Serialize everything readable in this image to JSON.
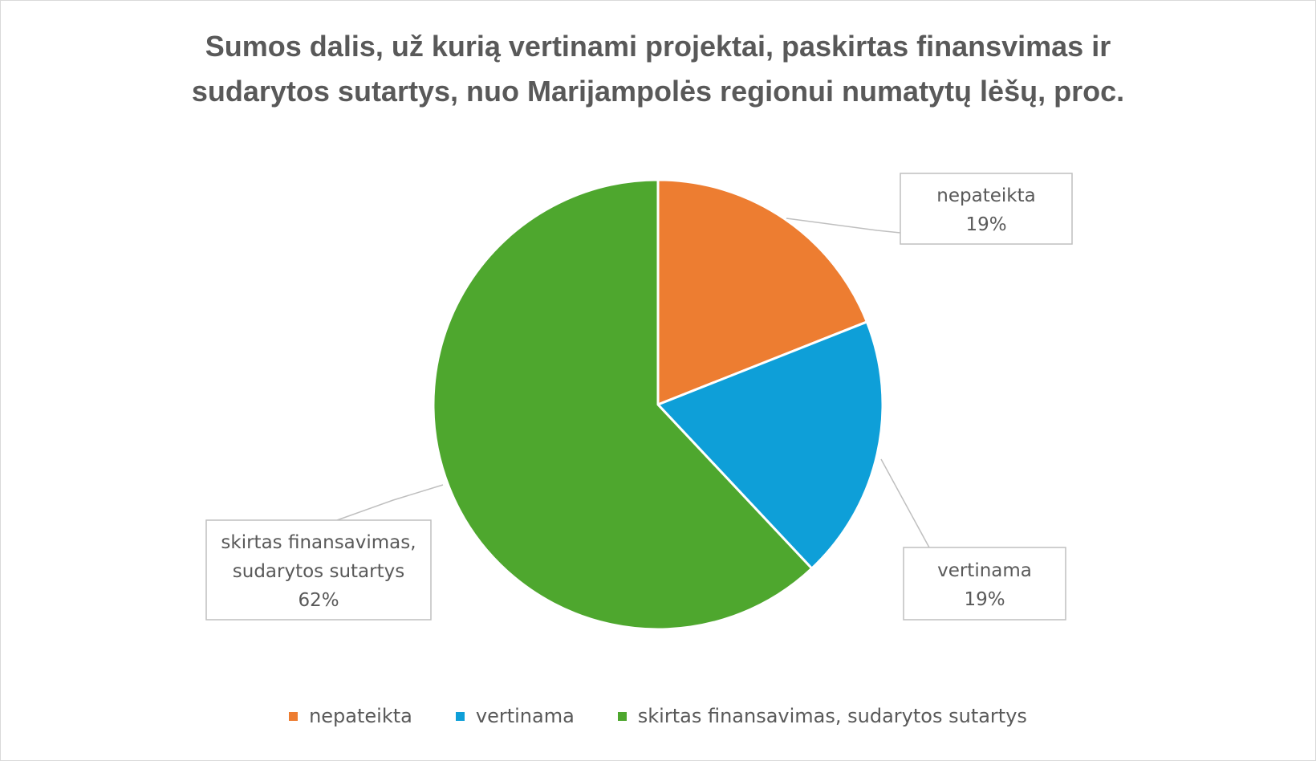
{
  "chart_data": {
    "type": "pie",
    "title_lines": [
      "Sumos dalis, už kurią vertinami projektai, paskirtas finansvimas ir",
      "sudarytos sutartys, nuo Marijampolės regionui numatytų lėšų, proc."
    ],
    "slices": [
      {
        "label": "nepateikta",
        "value": 19,
        "value_label": "19%",
        "color": "#ED7D31",
        "label_lines": [
          "nepateikta",
          "19%"
        ]
      },
      {
        "label": "vertinama",
        "value": 19,
        "value_label": "19%",
        "color": "#0E9FD8",
        "label_lines": [
          "vertinama",
          "19%"
        ]
      },
      {
        "label": "skirtas finansavimas, sudarytos sutartys",
        "value": 62,
        "value_label": "62%",
        "color": "#4EA72E",
        "label_lines": [
          "skirtas finansavimas,",
          "sudarytos sutartys",
          "62%"
        ]
      }
    ],
    "legend_position": "bottom"
  }
}
